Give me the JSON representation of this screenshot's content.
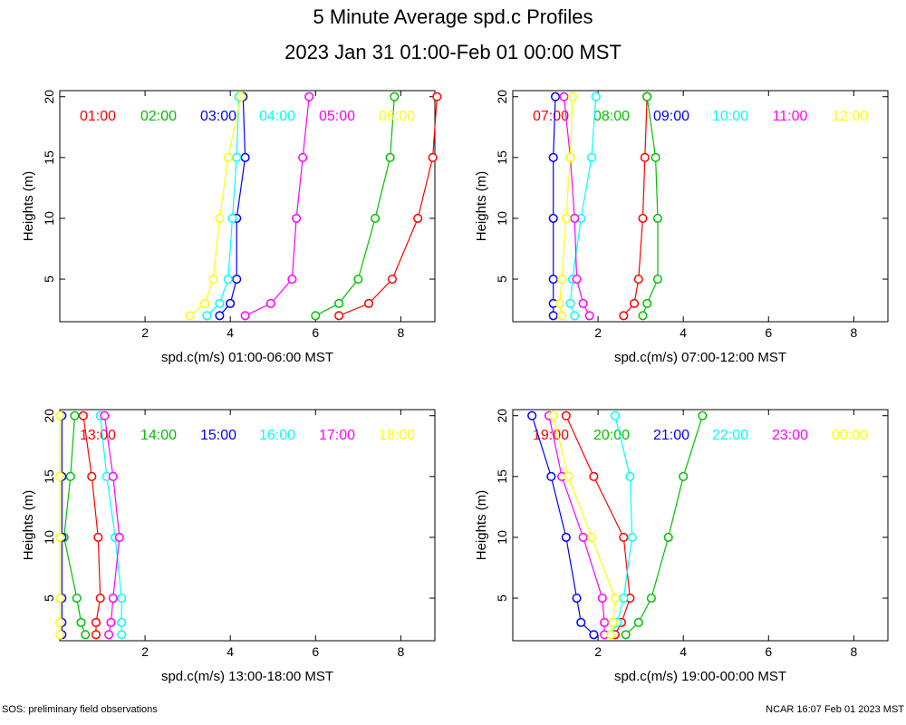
{
  "title": "5 Minute Average spd.c Profiles",
  "subtitle": "2023 Jan 31 01:00-Feb 01 00:00 MST",
  "footer_left": "SOS: preliminary field observations",
  "footer_right": "NCAR 16:07 Feb 01 2023 MST",
  "colors": [
    "#ff0000",
    "#00c000",
    "#0000ff",
    "#00ffff",
    "#ff00ff",
    "#ffff00"
  ],
  "chart_data": [
    {
      "type": "line",
      "xlabel": "spd.c(m/s) 01:00-06:00 MST",
      "ylabel": "Heights (m)",
      "xlim": [
        0,
        8.8
      ],
      "ylim": [
        1.5,
        20.5
      ],
      "xticks": [
        2,
        4,
        6,
        8
      ],
      "yticks": [
        5,
        10,
        15,
        20
      ],
      "heights": [
        2,
        3,
        5,
        10,
        15,
        20
      ],
      "series": [
        {
          "name": "01:00",
          "values": [
            6.55,
            7.25,
            7.8,
            8.4,
            8.75,
            8.85
          ]
        },
        {
          "name": "02:00",
          "values": [
            6.0,
            6.55,
            7.0,
            7.4,
            7.75,
            7.85
          ]
        },
        {
          "name": "03:00",
          "values": [
            3.75,
            4.0,
            4.15,
            4.15,
            4.35,
            4.3
          ]
        },
        {
          "name": "04:00",
          "values": [
            3.45,
            3.75,
            3.95,
            4.05,
            4.15,
            4.2
          ]
        },
        {
          "name": "05:00",
          "values": [
            4.35,
            4.95,
            5.45,
            5.55,
            5.7,
            5.85
          ]
        },
        {
          "name": "06:00",
          "values": [
            3.05,
            3.4,
            3.6,
            3.75,
            3.95,
            4.25
          ]
        }
      ]
    },
    {
      "type": "line",
      "xlabel": "spd.c(m/s) 07:00-12:00 MST",
      "ylabel": "Heights (m)",
      "xlim": [
        0,
        8.8
      ],
      "ylim": [
        1.5,
        20.5
      ],
      "xticks": [
        2,
        4,
        6,
        8
      ],
      "yticks": [
        5,
        10,
        15,
        20
      ],
      "heights": [
        2,
        3,
        5,
        10,
        15,
        20
      ],
      "series": [
        {
          "name": "07:00",
          "values": [
            2.6,
            2.85,
            2.95,
            3.05,
            3.1,
            3.15
          ]
        },
        {
          "name": "08:00",
          "values": [
            3.05,
            3.15,
            3.4,
            3.4,
            3.35,
            3.15
          ]
        },
        {
          "name": "09:00",
          "values": [
            0.95,
            0.95,
            0.95,
            0.95,
            0.95,
            1.0
          ]
        },
        {
          "name": "10:00",
          "values": [
            1.45,
            1.35,
            1.4,
            1.6,
            1.85,
            1.95
          ]
        },
        {
          "name": "11:00",
          "values": [
            1.8,
            1.65,
            1.5,
            1.45,
            1.35,
            1.2
          ]
        },
        {
          "name": "12:00",
          "values": [
            1.15,
            1.1,
            1.15,
            1.25,
            1.35,
            1.4
          ]
        }
      ]
    },
    {
      "type": "line",
      "xlabel": "spd.c(m/s) 13:00-18:00 MST",
      "ylabel": "Heights (m)",
      "xlim": [
        0,
        8.8
      ],
      "ylim": [
        1.5,
        20.5
      ],
      "xticks": [
        2,
        4,
        6,
        8
      ],
      "yticks": [
        5,
        10,
        15,
        20
      ],
      "heights": [
        2,
        3,
        5,
        10,
        15,
        20
      ],
      "series": [
        {
          "name": "13:00",
          "values": [
            0.85,
            0.85,
            0.95,
            0.9,
            0.75,
            0.55
          ]
        },
        {
          "name": "14:00",
          "values": [
            0.6,
            0.5,
            0.4,
            0.1,
            0.25,
            0.35
          ]
        },
        {
          "name": "15:00",
          "values": [
            0.05,
            0.05,
            0.05,
            0.05,
            0.05,
            0.05
          ]
        },
        {
          "name": "16:00",
          "values": [
            1.45,
            1.45,
            1.45,
            1.3,
            1.1,
            0.95
          ]
        },
        {
          "name": "17:00",
          "values": [
            1.15,
            1.2,
            1.25,
            1.4,
            1.25,
            1.05
          ]
        },
        {
          "name": "18:00",
          "values": [
            0.0,
            0.0,
            0.0,
            0.0,
            0.0,
            0.0
          ]
        }
      ]
    },
    {
      "type": "line",
      "xlabel": "spd.c(m/s) 19:00-00:00 MST",
      "ylabel": "Heights (m)",
      "xlim": [
        0,
        8.8
      ],
      "ylim": [
        1.5,
        20.5
      ],
      "xticks": [
        2,
        4,
        6,
        8
      ],
      "yticks": [
        5,
        10,
        15,
        20
      ],
      "heights": [
        2,
        3,
        5,
        10,
        15,
        20
      ],
      "series": [
        {
          "name": "19:00",
          "values": [
            2.4,
            2.55,
            2.75,
            2.6,
            1.9,
            1.25
          ]
        },
        {
          "name": "20:00",
          "values": [
            2.65,
            2.95,
            3.25,
            3.65,
            4.0,
            4.45
          ]
        },
        {
          "name": "21:00",
          "values": [
            1.9,
            1.6,
            1.5,
            1.25,
            0.9,
            0.45
          ]
        },
        {
          "name": "22:00",
          "values": [
            2.3,
            2.45,
            2.6,
            2.8,
            2.75,
            2.4
          ]
        },
        {
          "name": "23:00",
          "values": [
            2.15,
            2.15,
            2.1,
            1.65,
            1.15,
            0.85
          ]
        },
        {
          "name": "00:00",
          "values": [
            2.3,
            2.35,
            2.4,
            1.85,
            1.3,
            0.95
          ]
        }
      ]
    }
  ]
}
